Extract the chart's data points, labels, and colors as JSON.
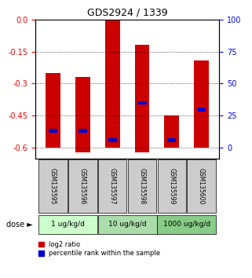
{
  "title": "GDS2924 / 1339",
  "samples": [
    "GSM135595",
    "GSM135596",
    "GSM135597",
    "GSM135598",
    "GSM135599",
    "GSM135600"
  ],
  "log2_ratio": [
    -0.6,
    -0.62,
    -0.6,
    -0.62,
    -0.6,
    -0.6
  ],
  "log2_top": [
    -0.25,
    -0.27,
    0.0,
    -0.12,
    -0.45,
    -0.19
  ],
  "percentile_pos": [
    -0.52,
    -0.52,
    -0.565,
    -0.39,
    -0.565,
    -0.42
  ],
  "bar_color": "#cc0000",
  "blue_color": "#0000cc",
  "ylim_min": -0.65,
  "ylim_max": 0.0,
  "yticks_left": [
    0.0,
    -0.15,
    -0.3,
    -0.45,
    -0.6
  ],
  "yticks_right": [
    100,
    75,
    50,
    25,
    0
  ],
  "dose_groups": [
    {
      "label": "1 ug/kg/d",
      "samples": [
        0,
        1
      ],
      "color": "#ccffcc"
    },
    {
      "label": "10 ug/kg/d",
      "samples": [
        2,
        3
      ],
      "color": "#aaddaa"
    },
    {
      "label": "1000 ug/kg/d",
      "samples": [
        4,
        5
      ],
      "color": "#88cc88"
    }
  ],
  "dose_label": "dose",
  "legend_red": "log2 ratio",
  "legend_blue": "percentile rank within the sample",
  "bar_width": 0.5,
  "grid_color": "#555555",
  "bg_plot": "#ffffff",
  "bg_sample_labels": "#cccccc"
}
